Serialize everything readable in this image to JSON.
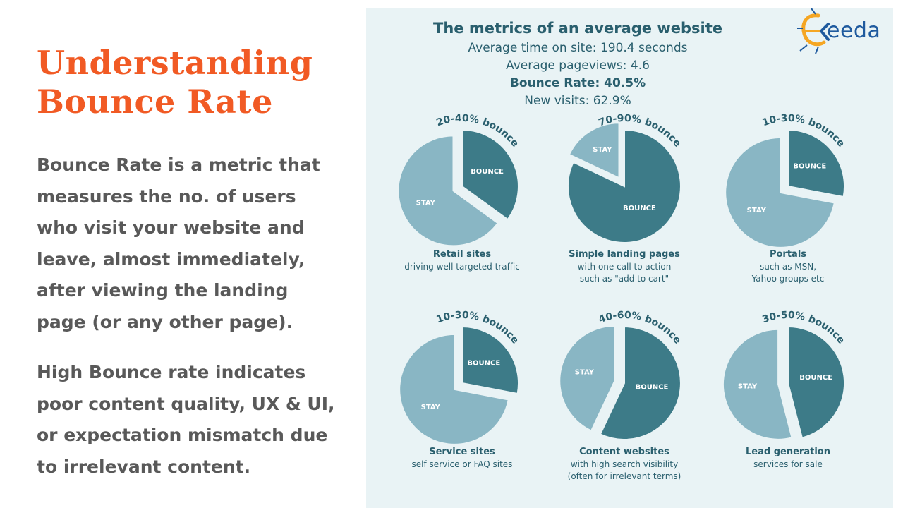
{
  "slide": {
    "title_line1": "Understanding",
    "title_line2": "Bounce Rate",
    "paragraph1": "Bounce Rate is a metric that measures the no. of users who visit your website and leave, almost immediately, after viewing the landing page (or any other page).",
    "paragraph2": "High Bounce rate indicates poor content quality, UX & UI, or expectation mismatch due to irrelevant content."
  },
  "logo": {
    "text": "eeda",
    "icon": "e-circuit-logo-icon",
    "color": "#1f5a9e",
    "accent": "#f5a623"
  },
  "colors": {
    "title": "#f15a24",
    "bounce": "#3d7b88",
    "stay": "#89b6c4",
    "panel": "#e9f3f5",
    "text": "#2a5f6e"
  },
  "chart_data": {
    "type": "pie",
    "title": "The metrics of an average website",
    "summary": [
      {
        "text": "Average time on site: 190.4 seconds",
        "bold": false
      },
      {
        "text": "Average pageviews: 4.6",
        "bold": false
      },
      {
        "text": "Bounce Rate: 40.5%",
        "bold": true
      },
      {
        "text": "New visits: 62.9%",
        "bold": false
      }
    ],
    "slice_labels": {
      "bounce": "BOUNCE",
      "stay": "STAY"
    },
    "charts": [
      {
        "range": "20-40% bounce",
        "bounce_pct": 35,
        "title": "Retail sites",
        "subtitle": [
          "driving well targeted traffic"
        ]
      },
      {
        "range": "70-90% bounce",
        "bounce_pct": 82,
        "title": "Simple landing pages",
        "subtitle": [
          "with one call to action",
          "such as \"add to cart\""
        ]
      },
      {
        "range": "10-30% bounce",
        "bounce_pct": 28,
        "title": "Portals",
        "subtitle": [
          "such as MSN,",
          "Yahoo groups etc"
        ]
      },
      {
        "range": "10-30% bounce",
        "bounce_pct": 28,
        "title": "Service sites",
        "subtitle": [
          "self service or FAQ sites"
        ]
      },
      {
        "range": "40-60% bounce",
        "bounce_pct": 57,
        "title": "Content websites",
        "subtitle": [
          "with high search visibility",
          "(often for irrelevant terms)"
        ]
      },
      {
        "range": "30-50% bounce",
        "bounce_pct": 46,
        "title": "Lead generation",
        "subtitle": [
          "services for sale"
        ]
      }
    ]
  }
}
